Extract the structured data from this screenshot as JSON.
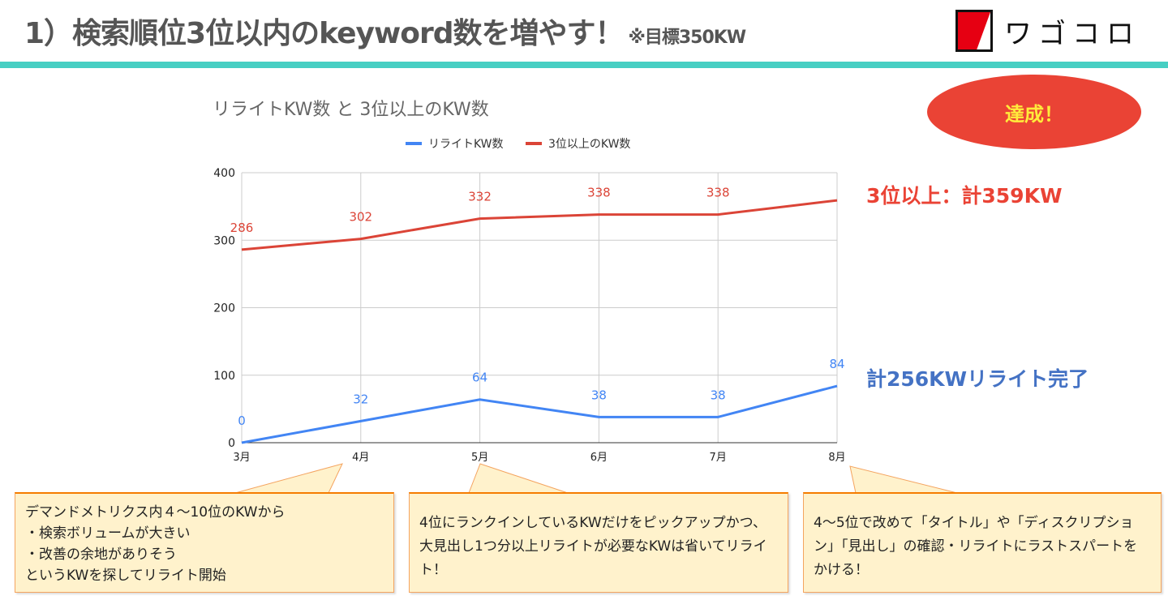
{
  "header": {
    "title": "1）検索順位3位以内のkeyword数を増やす！",
    "subtitle": "※目標350KW",
    "logo_text": "ワゴコロ"
  },
  "badge": "達成！",
  "annotations": {
    "red": "3位以上：計359KW",
    "blue": "計256KWリライト完了"
  },
  "colors": {
    "blue": "#4285f4",
    "red": "#db4437",
    "accent": "#47cfc3"
  },
  "callouts": [
    {
      "lines": [
        "デマンドメトリクス内４～10位のKWから",
        "・検索ボリュームが大きい",
        "・改善の余地がありそう",
        "というKWを探してリライト開始"
      ]
    },
    {
      "lines": [
        "4位にランクインしているKWだけをピックアップかつ、大見出し1つ分以上リライトが必要なKWは省いてリライト！"
      ]
    },
    {
      "lines": [
        "4～5位で改めて「タイトル」や「ディスクリプション」「見出し」の確認・リライトにラストスパートをかける！"
      ]
    }
  ],
  "chart_data": {
    "type": "line",
    "title": "リライトKW数 と 3位以上のKW数",
    "categories": [
      "3月",
      "4月",
      "5月",
      "6月",
      "7月",
      "8月"
    ],
    "series": [
      {
        "name": "リライトKW数",
        "color": "#4285f4",
        "values": [
          0,
          32,
          64,
          38,
          38,
          84
        ],
        "labels": [
          "0",
          "32",
          "64",
          "38",
          "38",
          "84"
        ]
      },
      {
        "name": "3位以上のKW数",
        "color": "#db4437",
        "values": [
          286,
          302,
          332,
          338,
          338,
          359
        ],
        "labels": [
          "286",
          "302",
          "332",
          "338",
          "338",
          ""
        ]
      }
    ],
    "yticks": [
      0,
      100,
      200,
      300,
      400
    ],
    "ylim": [
      0,
      400
    ],
    "grid": true,
    "legend": "top-center"
  }
}
